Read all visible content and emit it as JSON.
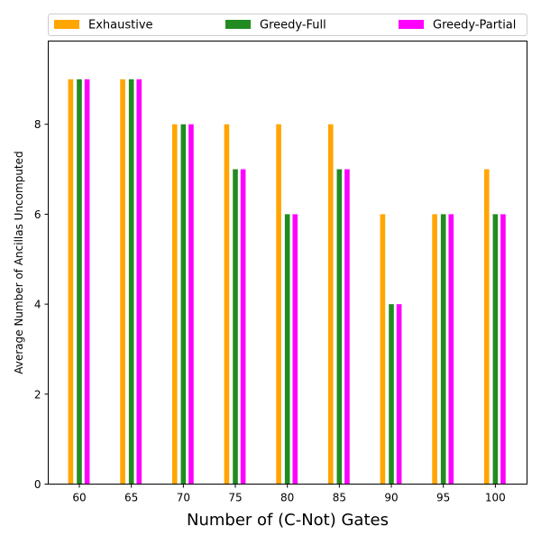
{
  "chart_data": {
    "type": "bar",
    "title": "",
    "xlabel": "Number of (C-Not) Gates",
    "ylabel": "Average Number of Ancillas Uncomputed",
    "categories": [
      "60",
      "65",
      "70",
      "75",
      "80",
      "85",
      "90",
      "95",
      "100"
    ],
    "series": [
      {
        "name": "Exhaustive",
        "color": "#ffa500",
        "values": [
          9,
          9,
          8,
          8,
          8,
          8,
          6,
          6,
          7
        ]
      },
      {
        "name": "Greedy-Full",
        "color": "#228b22",
        "values": [
          9,
          9,
          8,
          7,
          6,
          7,
          4,
          6,
          6
        ]
      },
      {
        "name": "Greedy-Partial",
        "color": "#ff00ff",
        "values": [
          9,
          9,
          8,
          7,
          6,
          7,
          4,
          6,
          6
        ]
      }
    ],
    "yticks": [
      0,
      2,
      4,
      6,
      8
    ],
    "ylim": [
      0,
      9.85
    ],
    "grid": false,
    "legend_position": "top, above plot, 3 columns"
  }
}
